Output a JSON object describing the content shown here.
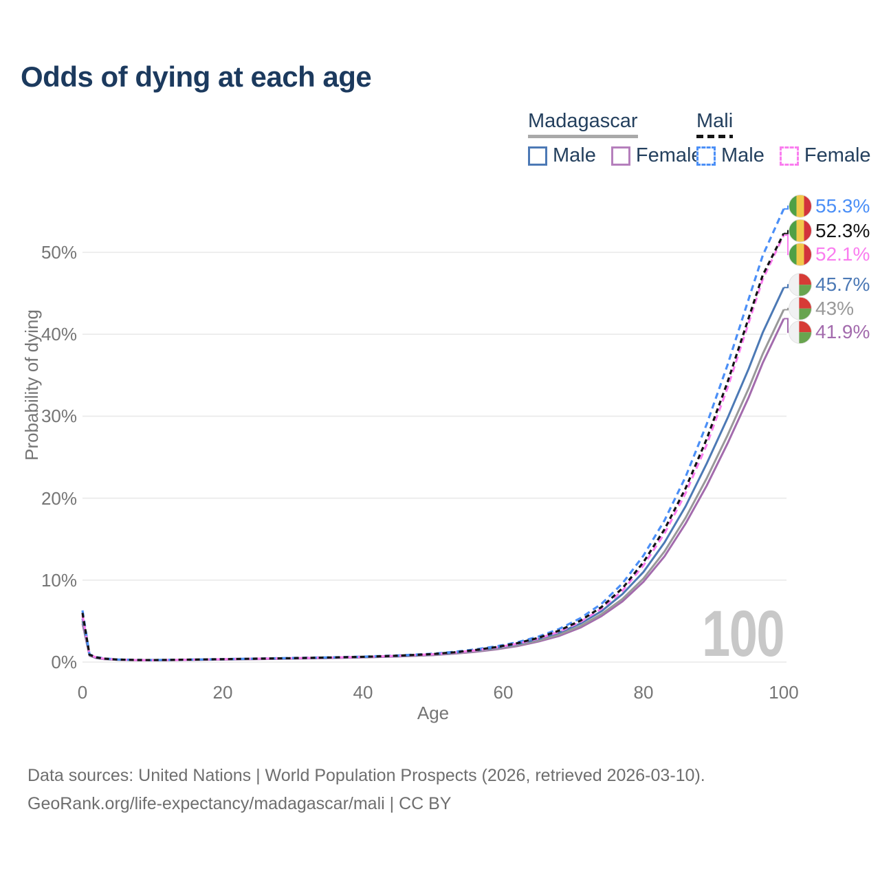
{
  "title": "Odds of dying at each age",
  "legend": {
    "groups": [
      {
        "id": "madagascar",
        "country": "Madagascar",
        "underline_style": "solid",
        "items": [
          {
            "label": "Male",
            "color": "#4c79b5",
            "dashed": false,
            "series": "mad_male"
          },
          {
            "label": "Female",
            "color": "#b57fbc",
            "dashed": false,
            "series": "mad_female"
          }
        ]
      },
      {
        "id": "mali",
        "country": "Mali",
        "underline_style": "dashed",
        "items": [
          {
            "label": "Male",
            "color": "#4b8ff7",
            "dashed": true,
            "series": "mali_male"
          },
          {
            "label": "Female",
            "color": "#fa7def",
            "dashed": true,
            "series": "mali_female"
          }
        ]
      }
    ]
  },
  "watermark": "100",
  "footer": {
    "line1": "Data sources: United Nations | World Population Prospects (2026, retrieved 2026-03-10).",
    "line2": "GeoRank.org/life-expectancy/madagascar/mali | CC BY"
  },
  "flags": {
    "mali": {
      "green": "#4fa046",
      "yellow": "#f2c84b",
      "red": "#d2333c"
    },
    "madagascar": {
      "white": "#f1f1f2",
      "red": "#d63b36",
      "green": "#68a44f"
    }
  },
  "chart_data": {
    "type": "line",
    "title": "Odds of dying at each age",
    "xlabel": "Age",
    "ylabel": "Probability of dying",
    "xlim": [
      0,
      100
    ],
    "ylim": [
      0,
      57
    ],
    "x_ticks": [
      0,
      20,
      40,
      60,
      80,
      100
    ],
    "y_ticks": [
      {
        "value": 0,
        "label": "0%"
      },
      {
        "value": 10,
        "label": "10%"
      },
      {
        "value": 20,
        "label": "20%"
      },
      {
        "value": 30,
        "label": "30%"
      },
      {
        "value": 40,
        "label": "40%"
      },
      {
        "value": 50,
        "label": "50%"
      }
    ],
    "grid": "horizontal",
    "legend_position": "top-right",
    "series": [
      {
        "id": "mali_male",
        "name": "Mali Male",
        "color": "#4b8ff7",
        "dashed": true,
        "z": 4,
        "end_label": "55.3%",
        "flag": "mali",
        "points": [
          [
            0,
            6.3
          ],
          [
            1,
            0.95
          ],
          [
            2,
            0.6
          ],
          [
            3,
            0.45
          ],
          [
            5,
            0.32
          ],
          [
            8,
            0.26
          ],
          [
            10,
            0.25
          ],
          [
            15,
            0.3
          ],
          [
            20,
            0.36
          ],
          [
            25,
            0.43
          ],
          [
            30,
            0.5
          ],
          [
            35,
            0.57
          ],
          [
            40,
            0.66
          ],
          [
            45,
            0.81
          ],
          [
            50,
            1.02
          ],
          [
            53,
            1.24
          ],
          [
            56,
            1.54
          ],
          [
            59,
            1.92
          ],
          [
            62,
            2.42
          ],
          [
            65,
            3.1
          ],
          [
            68,
            4.05
          ],
          [
            71,
            5.35
          ],
          [
            74,
            7.1
          ],
          [
            77,
            9.6
          ],
          [
            80,
            13.0
          ],
          [
            83,
            17.3
          ],
          [
            86,
            22.6
          ],
          [
            89,
            29.0
          ],
          [
            92,
            36.3
          ],
          [
            95,
            44.3
          ],
          [
            97,
            49.6
          ],
          [
            100,
            55.3
          ]
        ]
      },
      {
        "id": "mali_all",
        "name": "Mali",
        "color": "#141414",
        "dashed": true,
        "z": 6,
        "end_label": "52.3%",
        "flag": "mali",
        "points": [
          [
            0,
            6.0
          ],
          [
            1,
            0.9
          ],
          [
            2,
            0.57
          ],
          [
            3,
            0.43
          ],
          [
            5,
            0.3
          ],
          [
            8,
            0.25
          ],
          [
            10,
            0.24
          ],
          [
            15,
            0.29
          ],
          [
            20,
            0.35
          ],
          [
            25,
            0.42
          ],
          [
            30,
            0.48
          ],
          [
            35,
            0.55
          ],
          [
            40,
            0.64
          ],
          [
            45,
            0.78
          ],
          [
            50,
            0.98
          ],
          [
            53,
            1.19
          ],
          [
            56,
            1.47
          ],
          [
            59,
            1.83
          ],
          [
            62,
            2.3
          ],
          [
            65,
            2.95
          ],
          [
            68,
            3.85
          ],
          [
            71,
            5.05
          ],
          [
            74,
            6.7
          ],
          [
            77,
            9.0
          ],
          [
            80,
            12.2
          ],
          [
            83,
            16.2
          ],
          [
            86,
            21.2
          ],
          [
            89,
            27.2
          ],
          [
            92,
            34.2
          ],
          [
            95,
            42.0
          ],
          [
            97,
            47.2
          ],
          [
            100,
            52.3
          ]
        ]
      },
      {
        "id": "mali_female",
        "name": "Mali Female",
        "color": "#fa7def",
        "dashed": true,
        "z": 5,
        "end_label": "52.1%",
        "flag": "mali",
        "points": [
          [
            0,
            5.7
          ],
          [
            1,
            0.87
          ],
          [
            2,
            0.55
          ],
          [
            3,
            0.41
          ],
          [
            5,
            0.29
          ],
          [
            8,
            0.24
          ],
          [
            10,
            0.23
          ],
          [
            15,
            0.28
          ],
          [
            20,
            0.34
          ],
          [
            25,
            0.41
          ],
          [
            30,
            0.47
          ],
          [
            35,
            0.54
          ],
          [
            40,
            0.62
          ],
          [
            45,
            0.76
          ],
          [
            50,
            0.95
          ],
          [
            53,
            1.15
          ],
          [
            56,
            1.42
          ],
          [
            59,
            1.77
          ],
          [
            62,
            2.23
          ],
          [
            65,
            2.86
          ],
          [
            68,
            3.72
          ],
          [
            71,
            4.9
          ],
          [
            74,
            6.5
          ],
          [
            77,
            8.7
          ],
          [
            80,
            11.8
          ],
          [
            83,
            15.7
          ],
          [
            86,
            20.6
          ],
          [
            89,
            26.5
          ],
          [
            92,
            33.5
          ],
          [
            95,
            41.4
          ],
          [
            97,
            46.7
          ],
          [
            100,
            52.1
          ]
        ]
      },
      {
        "id": "mad_male",
        "name": "Madagascar Male",
        "color": "#4c79b5",
        "dashed": false,
        "z": 3,
        "end_label": "45.7%",
        "flag": "madagascar",
        "points": [
          [
            0,
            5.3
          ],
          [
            1,
            0.86
          ],
          [
            2,
            0.52
          ],
          [
            3,
            0.4
          ],
          [
            5,
            0.29
          ],
          [
            8,
            0.24
          ],
          [
            10,
            0.23
          ],
          [
            15,
            0.27
          ],
          [
            20,
            0.33
          ],
          [
            25,
            0.4
          ],
          [
            30,
            0.46
          ],
          [
            35,
            0.53
          ],
          [
            40,
            0.62
          ],
          [
            45,
            0.75
          ],
          [
            50,
            0.94
          ],
          [
            53,
            1.13
          ],
          [
            56,
            1.4
          ],
          [
            59,
            1.73
          ],
          [
            62,
            2.18
          ],
          [
            65,
            2.8
          ],
          [
            68,
            3.6
          ],
          [
            71,
            4.7
          ],
          [
            74,
            6.2
          ],
          [
            77,
            8.3
          ],
          [
            80,
            11.0
          ],
          [
            83,
            14.6
          ],
          [
            86,
            19.0
          ],
          [
            89,
            24.2
          ],
          [
            92,
            29.8
          ],
          [
            95,
            35.8
          ],
          [
            97,
            40.2
          ],
          [
            100,
            45.7
          ]
        ]
      },
      {
        "id": "mad_all",
        "name": "Madagascar",
        "color": "#999999",
        "dashed": false,
        "z": 2,
        "end_label": "43%",
        "flag": "madagascar",
        "points": [
          [
            0,
            5.0
          ],
          [
            1,
            0.82
          ],
          [
            2,
            0.5
          ],
          [
            3,
            0.38
          ],
          [
            5,
            0.28
          ],
          [
            8,
            0.23
          ],
          [
            10,
            0.22
          ],
          [
            15,
            0.26
          ],
          [
            20,
            0.32
          ],
          [
            25,
            0.38
          ],
          [
            30,
            0.44
          ],
          [
            35,
            0.5
          ],
          [
            40,
            0.59
          ],
          [
            45,
            0.71
          ],
          [
            50,
            0.89
          ],
          [
            53,
            1.07
          ],
          [
            56,
            1.32
          ],
          [
            59,
            1.63
          ],
          [
            62,
            2.05
          ],
          [
            65,
            2.62
          ],
          [
            68,
            3.36
          ],
          [
            71,
            4.4
          ],
          [
            74,
            5.85
          ],
          [
            77,
            7.7
          ],
          [
            80,
            10.2
          ],
          [
            83,
            13.5
          ],
          [
            86,
            17.6
          ],
          [
            89,
            22.4
          ],
          [
            92,
            27.7
          ],
          [
            95,
            33.4
          ],
          [
            97,
            37.6
          ],
          [
            100,
            43.0
          ]
        ]
      },
      {
        "id": "mad_female",
        "name": "Madagascar Female",
        "color": "#a36bad",
        "dashed": false,
        "z": 1,
        "end_label": "41.9%",
        "flag": "madagascar",
        "points": [
          [
            0,
            4.7
          ],
          [
            1,
            0.78
          ],
          [
            2,
            0.48
          ],
          [
            3,
            0.36
          ],
          [
            5,
            0.27
          ],
          [
            8,
            0.22
          ],
          [
            10,
            0.21
          ],
          [
            15,
            0.25
          ],
          [
            20,
            0.3
          ],
          [
            25,
            0.36
          ],
          [
            30,
            0.42
          ],
          [
            35,
            0.48
          ],
          [
            40,
            0.56
          ],
          [
            45,
            0.68
          ],
          [
            50,
            0.85
          ],
          [
            53,
            1.02
          ],
          [
            56,
            1.25
          ],
          [
            59,
            1.55
          ],
          [
            62,
            1.95
          ],
          [
            65,
            2.5
          ],
          [
            68,
            3.2
          ],
          [
            71,
            4.2
          ],
          [
            74,
            5.6
          ],
          [
            77,
            7.4
          ],
          [
            80,
            9.8
          ],
          [
            83,
            12.9
          ],
          [
            86,
            16.9
          ],
          [
            89,
            21.5
          ],
          [
            92,
            26.7
          ],
          [
            95,
            32.3
          ],
          [
            97,
            36.5
          ],
          [
            100,
            41.9
          ]
        ]
      }
    ]
  }
}
